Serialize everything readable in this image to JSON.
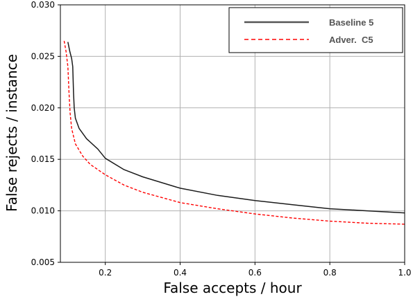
{
  "chart_data": {
    "type": "line",
    "title": "",
    "xlabel": "False accepts / hour",
    "ylabel": "False rejects / instance",
    "xlim": [
      0.08,
      1.0
    ],
    "ylim": [
      0.005,
      0.03
    ],
    "x_ticks": [
      0.2,
      0.4,
      0.6,
      0.8,
      1.0
    ],
    "x_tick_labels": [
      "0.2",
      "0.4",
      "0.6",
      "0.8",
      "1.0"
    ],
    "y_ticks": [
      0.005,
      0.01,
      0.015,
      0.02,
      0.025,
      0.03
    ],
    "y_tick_labels": [
      "0.005",
      "0.010",
      "0.015",
      "0.020",
      "0.025",
      "0.030"
    ],
    "grid": true,
    "legend_position": "top-right",
    "series": [
      {
        "name": "Baseline 5",
        "color": "#1a1a1a",
        "dash": "solid",
        "x": [
          0.1,
          0.105,
          0.11,
          0.113,
          0.115,
          0.117,
          0.12,
          0.13,
          0.15,
          0.18,
          0.2,
          0.25,
          0.3,
          0.4,
          0.5,
          0.6,
          0.7,
          0.8,
          0.9,
          1.0
        ],
        "y": [
          0.0264,
          0.0255,
          0.0248,
          0.024,
          0.0215,
          0.02,
          0.019,
          0.018,
          0.017,
          0.016,
          0.0151,
          0.014,
          0.0133,
          0.0122,
          0.0115,
          0.011,
          0.0106,
          0.0102,
          0.01,
          0.0098
        ]
      },
      {
        "name": "Adver.  C5",
        "color": "#ff0000",
        "dash": "dashed",
        "x": [
          0.09,
          0.095,
          0.1,
          0.103,
          0.106,
          0.11,
          0.12,
          0.14,
          0.16,
          0.2,
          0.25,
          0.3,
          0.4,
          0.5,
          0.6,
          0.7,
          0.8,
          0.9,
          1.0
        ],
        "y": [
          0.0265,
          0.0255,
          0.024,
          0.0215,
          0.0195,
          0.018,
          0.0165,
          0.0153,
          0.0145,
          0.0135,
          0.0125,
          0.0118,
          0.0108,
          0.0102,
          0.0097,
          0.0093,
          0.009,
          0.0088,
          0.0087
        ]
      }
    ]
  }
}
